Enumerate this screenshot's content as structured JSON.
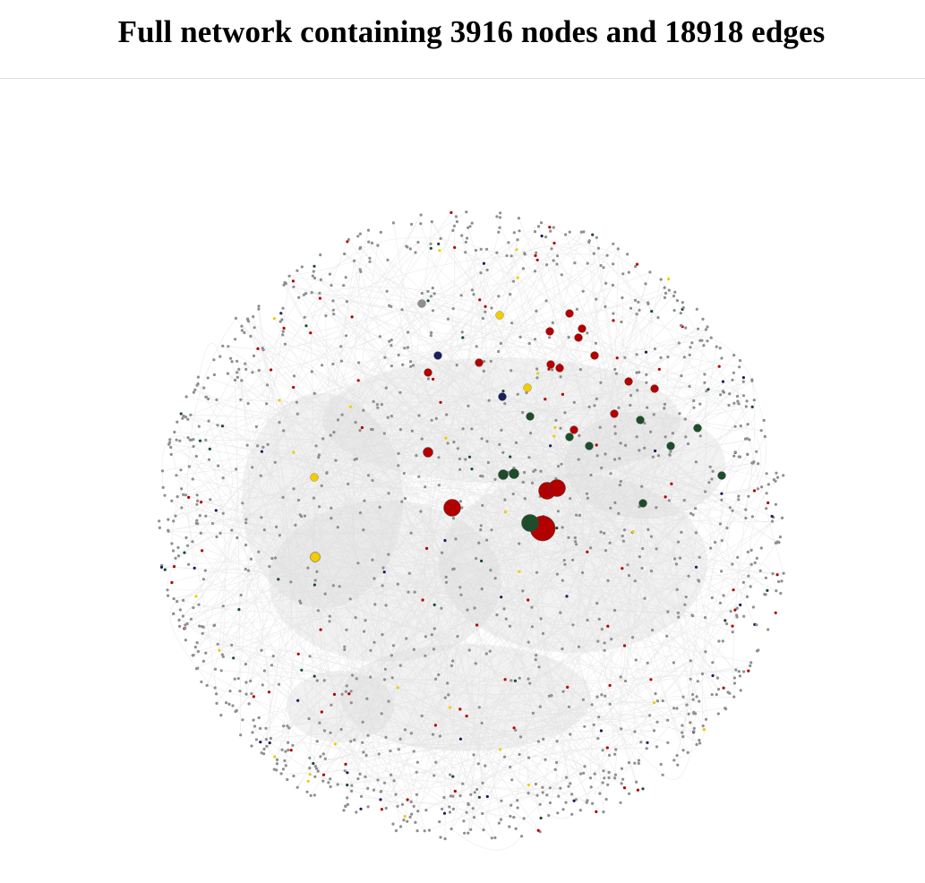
{
  "page": {
    "title": "Full network containing 3916 nodes and 18918 edges"
  },
  "network": {
    "node_count": 3916,
    "edge_count": 18918,
    "colors": {
      "background": "#ffffff",
      "edge": "#e3e3e3",
      "node_default": "#8f8f8f",
      "red": "#b20000",
      "green": "#1e4d2b",
      "navy": "#1d1f5c",
      "yellow": "#f2cc00"
    },
    "hub_nodes": [
      {
        "color": "red",
        "weight": 3
      },
      {
        "color": "green",
        "weight": 2
      },
      {
        "color": "red",
        "weight": 2
      },
      {
        "color": "red",
        "weight": 2
      },
      {
        "color": "red",
        "weight": 2
      },
      {
        "color": "green",
        "weight": 1
      },
      {
        "color": "green",
        "weight": 1
      },
      {
        "color": "yellow",
        "weight": 1
      },
      {
        "color": "red",
        "weight": 1
      }
    ]
  }
}
